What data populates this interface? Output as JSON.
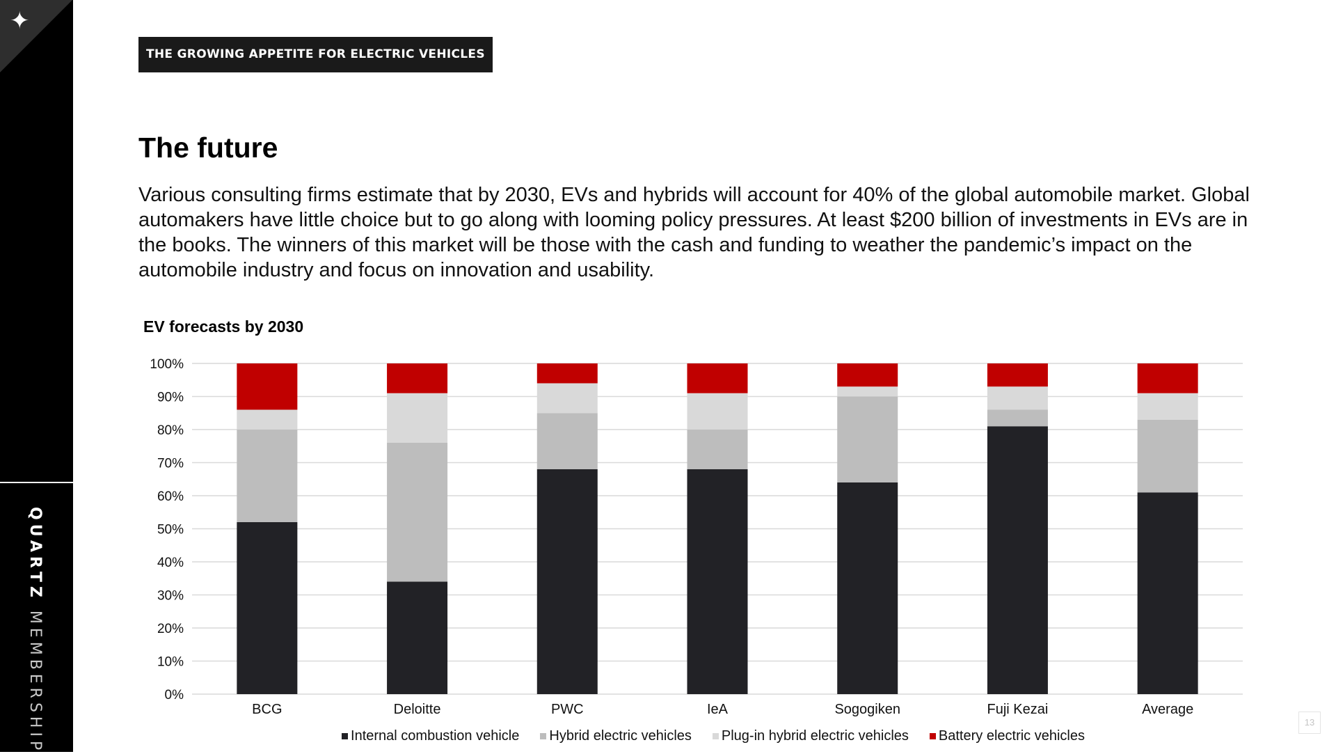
{
  "sidebar": {
    "logo_icon": "sparkle-star-icon",
    "brand_bold": "QUARTZ",
    "brand_rest": "MEMBERSHIP"
  },
  "header": {
    "section_tag": "THE GROWING APPETITE FOR ELECTRIC VEHICLES"
  },
  "main": {
    "title": "The future",
    "body": "Various consulting firms estimate that by 2030, EVs and hybrids will account for 40% of the global automobile market. Global automakers have little choice but to go along with looming policy pressures. At least $200 billion of investments in EVs are in the books. The winners of this market will be those with the cash and funding to weather the pandemic’s impact on the automobile industry and focus on innovation and usability."
  },
  "chart_data": {
    "type": "bar",
    "stacked": true,
    "title": "EV forecasts by 2030",
    "categories": [
      "BCG",
      "Deloitte",
      "PWC",
      "IeA",
      "Sogogiken",
      "Fuji Kezai",
      "Average"
    ],
    "series": [
      {
        "name": "Internal combustion vehicle",
        "color": "#222226",
        "values": [
          52,
          34,
          68,
          68,
          64,
          81,
          61
        ]
      },
      {
        "name": "Hybrid electric vehicles",
        "color": "#bdbdbd",
        "values": [
          28,
          42,
          17,
          12,
          26,
          5,
          22
        ]
      },
      {
        "name": "Plug-in hybrid electric vehicles",
        "color": "#d9d9d9",
        "values": [
          6,
          15,
          9,
          11,
          3,
          7,
          8
        ]
      },
      {
        "name": "Battery electric vehicles",
        "color": "#c00000",
        "values": [
          14,
          9,
          6,
          9,
          7,
          7,
          9
        ]
      }
    ],
    "y_ticks": [
      "0%",
      "10%",
      "20%",
      "30%",
      "40%",
      "50%",
      "60%",
      "70%",
      "80%",
      "90%",
      "100%"
    ],
    "ylim": [
      0,
      100
    ],
    "grid": true,
    "legend_position": "bottom"
  },
  "footer": {
    "page_number": "13"
  }
}
